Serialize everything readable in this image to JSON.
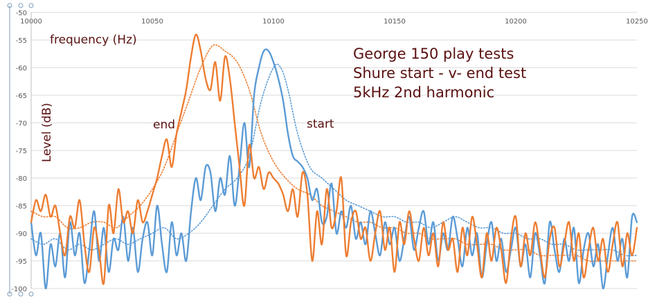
{
  "chart_data": {
    "type": "line",
    "title": "",
    "xlabel": "frequency (Hz)",
    "ylabel": "Level (dB)",
    "xlim": [
      10000,
      10250
    ],
    "ylim": [
      -100,
      -50
    ],
    "xticks": [
      10000,
      10050,
      10100,
      10150,
      10200,
      10250
    ],
    "yticks": [
      -50,
      -55,
      -60,
      -65,
      -70,
      -75,
      -80,
      -85,
      -90,
      -95,
      -100
    ],
    "grid": true,
    "annotations": [
      {
        "text": "George 150 play tests",
        "group": "title"
      },
      {
        "text": "Shure start - v- end test",
        "group": "title"
      },
      {
        "text": "5kHz 2nd harmonic",
        "group": "title"
      },
      {
        "text": "end",
        "near_series": "end"
      },
      {
        "text": "start",
        "near_series": "start"
      }
    ],
    "series": [
      {
        "key": "start",
        "color": "#5b9bd5",
        "style": "solid",
        "x": [
          10000,
          10002,
          10004,
          10006,
          10008,
          10010,
          10012,
          10014,
          10016,
          10018,
          10020,
          10022,
          10024,
          10026,
          10028,
          10030,
          10032,
          10034,
          10036,
          10038,
          10040,
          10042,
          10044,
          10046,
          10048,
          10050,
          10052,
          10054,
          10056,
          10058,
          10060,
          10062,
          10064,
          10066,
          10068,
          10070,
          10072,
          10074,
          10076,
          10078,
          10080,
          10082,
          10084,
          10086,
          10088,
          10090,
          10092,
          10094,
          10096,
          10098,
          10100,
          10102,
          10104,
          10106,
          10108,
          10110,
          10112,
          10114,
          10116,
          10118,
          10120,
          10122,
          10124,
          10126,
          10128,
          10130,
          10132,
          10134,
          10136,
          10138,
          10140,
          10142,
          10144,
          10146,
          10148,
          10150,
          10152,
          10154,
          10156,
          10158,
          10160,
          10162,
          10164,
          10166,
          10168,
          10170,
          10172,
          10174,
          10176,
          10178,
          10180,
          10182,
          10184,
          10186,
          10188,
          10190,
          10192,
          10194,
          10196,
          10198,
          10200,
          10202,
          10204,
          10206,
          10208,
          10210,
          10212,
          10214,
          10216,
          10218,
          10220,
          10222,
          10224,
          10226,
          10228,
          10230,
          10232,
          10234,
          10236,
          10238,
          10240,
          10242,
          10244,
          10246,
          10248,
          10250
        ],
        "y": [
          -88,
          -94,
          -90,
          -100,
          -92,
          -96,
          -90,
          -98,
          -88,
          -94,
          -90,
          -99,
          -93,
          -86,
          -95,
          -89,
          -97,
          -91,
          -93,
          -87,
          -95,
          -89,
          -97,
          -91,
          -88,
          -94,
          -85,
          -92,
          -97,
          -88,
          -94,
          -90,
          -95,
          -86,
          -80,
          -84,
          -78,
          -79,
          -86,
          -80,
          -83,
          -76,
          -85,
          -78,
          -70,
          -78,
          -65,
          -60,
          -57,
          -57,
          -59,
          -62,
          -66,
          -72,
          -76,
          -77,
          -78,
          -80,
          -84,
          -82,
          -88,
          -87,
          -81,
          -90,
          -86,
          -89,
          -85,
          -91,
          -88,
          -92,
          -86,
          -90,
          -94,
          -88,
          -92,
          -89,
          -95,
          -91,
          -87,
          -93,
          -89,
          -86,
          -92,
          -88,
          -95,
          -90,
          -93,
          -87,
          -91,
          -96,
          -89,
          -94,
          -90,
          -98,
          -92,
          -88,
          -95,
          -91,
          -97,
          -93,
          -89,
          -96,
          -92,
          -98,
          -90,
          -94,
          -99,
          -88,
          -93,
          -97,
          -91,
          -95,
          -89,
          -99,
          -93,
          -90,
          -96,
          -92,
          -100,
          -94,
          -89,
          -95,
          -91,
          -98,
          -87,
          -88
        ]
      },
      {
        "key": "end",
        "color": "#ed7d31",
        "style": "solid",
        "x": [
          10000,
          10002,
          10004,
          10006,
          10008,
          10010,
          10012,
          10014,
          10016,
          10018,
          10020,
          10022,
          10024,
          10026,
          10028,
          10030,
          10032,
          10034,
          10036,
          10038,
          10040,
          10042,
          10044,
          10046,
          10048,
          10050,
          10052,
          10054,
          10056,
          10058,
          10060,
          10062,
          10064,
          10066,
          10068,
          10070,
          10072,
          10074,
          10076,
          10078,
          10080,
          10082,
          10084,
          10086,
          10088,
          10090,
          10092,
          10094,
          10096,
          10098,
          10100,
          10102,
          10104,
          10106,
          10108,
          10110,
          10112,
          10114,
          10116,
          10118,
          10120,
          10122,
          10124,
          10126,
          10128,
          10130,
          10132,
          10134,
          10136,
          10138,
          10140,
          10142,
          10144,
          10146,
          10148,
          10150,
          10152,
          10154,
          10156,
          10158,
          10160,
          10162,
          10164,
          10166,
          10168,
          10170,
          10172,
          10174,
          10176,
          10178,
          10180,
          10182,
          10184,
          10186,
          10188,
          10190,
          10192,
          10194,
          10196,
          10198,
          10200,
          10202,
          10204,
          10206,
          10208,
          10210,
          10212,
          10214,
          10216,
          10218,
          10220,
          10222,
          10224,
          10226,
          10228,
          10230,
          10232,
          10234,
          10236,
          10238,
          10240,
          10242,
          10244,
          10246,
          10248,
          10250
        ],
        "y": [
          -88,
          -84,
          -86,
          -83,
          -87,
          -85,
          -90,
          -94,
          -87,
          -89,
          -84,
          -92,
          -97,
          -89,
          -93,
          -99,
          -85,
          -90,
          -82,
          -88,
          -86,
          -90,
          -84,
          -88,
          -86,
          -83,
          -80,
          -76,
          -73,
          -78,
          -72,
          -68,
          -64,
          -58,
          -54,
          -57,
          -62,
          -64,
          -59,
          -66,
          -58,
          -62,
          -70,
          -78,
          -85,
          -74,
          -80,
          -78,
          -82,
          -79,
          -80,
          -81,
          -83,
          -86,
          -82,
          -87,
          -79,
          -83,
          -95,
          -86,
          -92,
          -82,
          -89,
          -86,
          -80,
          -94,
          -88,
          -86,
          -91,
          -89,
          -95,
          -90,
          -86,
          -93,
          -89,
          -97,
          -88,
          -92,
          -86,
          -91,
          -95,
          -89,
          -94,
          -90,
          -96,
          -88,
          -93,
          -91,
          -97,
          -89,
          -94,
          -87,
          -92,
          -98,
          -90,
          -95,
          -89,
          -93,
          -99,
          -91,
          -87,
          -96,
          -90,
          -94,
          -88,
          -93,
          -98,
          -91,
          -89,
          -96,
          -92,
          -88,
          -95,
          -90,
          -98,
          -93,
          -89,
          -95,
          -91,
          -97,
          -92,
          -88,
          -96,
          -90,
          -94,
          -89
        ]
      },
      {
        "key": "start-trend",
        "color": "#5b9bd5",
        "style": "dotted",
        "x": [
          10000,
          10005,
          10010,
          10015,
          10020,
          10025,
          10030,
          10035,
          10040,
          10045,
          10050,
          10055,
          10060,
          10065,
          10070,
          10075,
          10080,
          10085,
          10090,
          10095,
          10100,
          10103,
          10106,
          10110,
          10115,
          10120,
          10125,
          10130,
          10135,
          10140,
          10145,
          10150,
          10155,
          10160,
          10165,
          10170,
          10175,
          10180,
          10185,
          10190,
          10195,
          10200,
          10205,
          10210,
          10215,
          10220,
          10225,
          10230,
          10235,
          10240,
          10245,
          10250
        ],
        "y": [
          -91,
          -92,
          -91,
          -93,
          -92,
          -93,
          -92,
          -91,
          -92,
          -91,
          -90,
          -89,
          -91,
          -90,
          -88,
          -85,
          -82,
          -80,
          -76,
          -66,
          -60,
          -60,
          -64,
          -72,
          -78,
          -80,
          -82,
          -84,
          -85,
          -86,
          -87,
          -87,
          -88,
          -88,
          -89,
          -88,
          -87,
          -88,
          -89,
          -89,
          -90,
          -90,
          -91,
          -91,
          -92,
          -92,
          -93,
          -93,
          -93,
          -93,
          -94,
          -94
        ]
      },
      {
        "key": "end-trend",
        "color": "#ed7d31",
        "style": "dotted",
        "x": [
          10000,
          10005,
          10010,
          10015,
          10020,
          10025,
          10030,
          10035,
          10040,
          10045,
          10050,
          10055,
          10060,
          10065,
          10070,
          10075,
          10080,
          10085,
          10090,
          10095,
          10100,
          10105,
          10110,
          10115,
          10120,
          10125,
          10130,
          10135,
          10140,
          10145,
          10150,
          10155,
          10160,
          10165,
          10170,
          10175,
          10180,
          10185,
          10190,
          10195,
          10200,
          10205,
          10210,
          10215,
          10220,
          10225,
          10230,
          10235,
          10240,
          10245,
          10250
        ],
        "y": [
          -86,
          -87,
          -87,
          -89,
          -89,
          -88,
          -88,
          -89,
          -87,
          -85,
          -82,
          -78,
          -72,
          -66,
          -60,
          -56,
          -57,
          -59,
          -64,
          -72,
          -77,
          -80,
          -82,
          -83,
          -85,
          -86,
          -87,
          -88,
          -88,
          -89,
          -89,
          -90,
          -90,
          -91,
          -91,
          -91,
          -92,
          -92,
          -92,
          -93,
          -93,
          -93,
          -94,
          -94,
          -94,
          -94,
          -95,
          -95,
          -95,
          -95,
          -95
        ]
      }
    ]
  }
}
